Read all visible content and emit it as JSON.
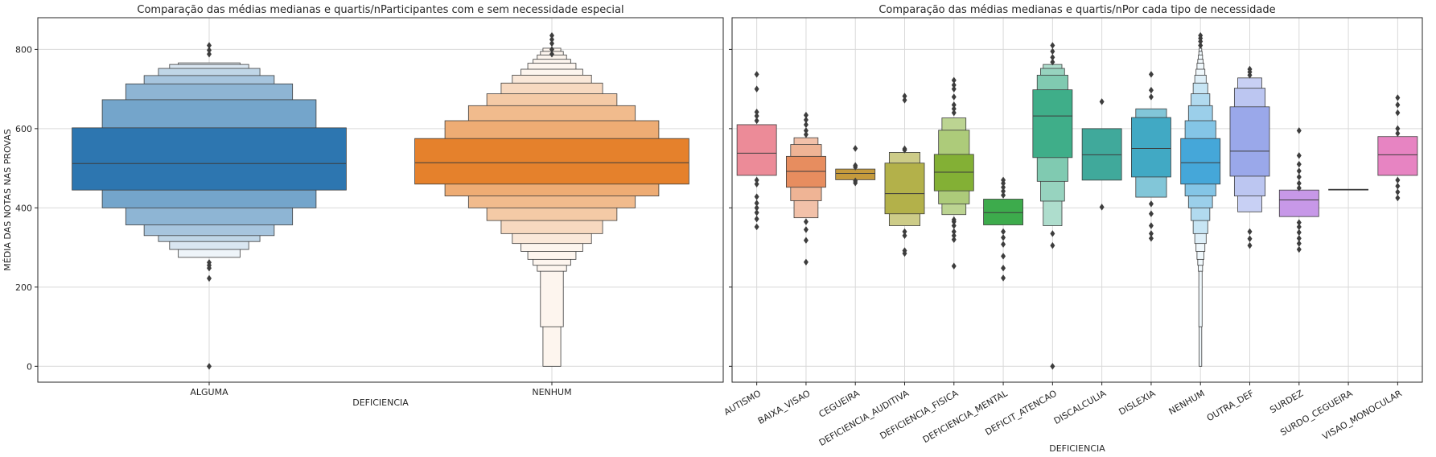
{
  "chart_data": [
    {
      "type": "boxen",
      "title": "Comparação das médias medianas e quartis/nParticipantes com e sem necessidade especial",
      "xlabel": "DEFICIENCIA",
      "ylabel": "MÉDIA DAS NOTAS NAS PROVAS",
      "ylim": [
        -40,
        880
      ],
      "yticks": [
        0,
        200,
        400,
        600,
        800
      ],
      "grid": true,
      "categories": [
        "ALGUMA",
        "NENHUM"
      ],
      "series": [
        {
          "category": "ALGUMA",
          "color": "#2d76b0",
          "median": 512,
          "levels": [
            [
              445,
              602
            ],
            [
              400,
              673
            ],
            [
              357,
              713
            ],
            [
              330,
              734
            ],
            [
              315,
              752
            ],
            [
              295,
              762
            ],
            [
              275,
              766
            ]
          ],
          "outliers": [
            0,
            222,
            248,
            255,
            262,
            788,
            798,
            810
          ]
        },
        {
          "category": "NENHUM",
          "color": "#e5812c",
          "median": 514,
          "levels": [
            [
              460,
              575
            ],
            [
              430,
              620
            ],
            [
              400,
              658
            ],
            [
              368,
              688
            ],
            [
              335,
              715
            ],
            [
              310,
              735
            ],
            [
              290,
              750
            ],
            [
              270,
              765
            ],
            [
              255,
              775
            ],
            [
              240,
              786
            ],
            [
              100,
              795
            ],
            [
              0,
              803
            ]
          ],
          "outliers": [
            788,
            800,
            815,
            825,
            835
          ]
        }
      ]
    },
    {
      "type": "boxen",
      "title": "Comparação  das médias medianas e quartis/nPor cada tipo de necessidade",
      "xlabel": "DEFICIENCIA",
      "ylabel": "",
      "ylim": [
        -40,
        880
      ],
      "yticks": [
        0,
        200,
        400,
        600,
        800
      ],
      "grid": true,
      "categories": [
        "AUTISMO",
        "BAIXA_VISAO",
        "CEGUEIRA",
        "DEFICIENCIA_AUDITIVA",
        "DEFICIENCIA_FISICA",
        "DEFICIENCIA_MENTAL",
        "DEFICIT_ATENCAO",
        "DISCALCULIA",
        "DISLEXIA",
        "NENHUM",
        "OUTRA_DEF",
        "SURDEZ",
        "SURDO_CEGUEIRA",
        "VISAO_MONOCULAR"
      ],
      "series": [
        {
          "category": "AUTISMO",
          "color": "#ec8b98",
          "median": 538,
          "levels": [
            [
              482,
              610
            ]
          ],
          "outliers": [
            352,
            372,
            388,
            400,
            412,
            428,
            460,
            470,
            620,
            632,
            642,
            700,
            737
          ]
        },
        {
          "category": "BAIXA_VISAO",
          "color": "#e78d5f",
          "median": 492,
          "levels": [
            [
              452,
              530
            ],
            [
              418,
              560
            ],
            [
              375,
              577
            ]
          ],
          "outliers": [
            263,
            318,
            345,
            365,
            585,
            595,
            610,
            622,
            634
          ]
        },
        {
          "category": "CEGUEIRA",
          "color": "#c59a3c",
          "median": 487,
          "levels": [
            [
              471,
              498
            ]
          ],
          "outliers": [
            463,
            468,
            503,
            507,
            550
          ]
        },
        {
          "category": "DEFICIENCIA_AUDITIVA",
          "color": "#b3b14a",
          "median": 436,
          "levels": [
            [
              385,
              513
            ],
            [
              355,
              540
            ]
          ],
          "outliers": [
            285,
            292,
            330,
            340,
            546,
            549,
            672,
            682
          ]
        },
        {
          "category": "DEFICIENCIA_FISICA",
          "color": "#83b035",
          "median": 490,
          "levels": [
            [
              443,
              535
            ],
            [
              410,
              596
            ],
            [
              383,
              627
            ]
          ],
          "outliers": [
            253,
            320,
            330,
            340,
            355,
            365,
            370,
            640,
            650,
            660,
            680,
            700,
            710,
            722
          ]
        },
        {
          "category": "DEFICIENCIA_MENTAL",
          "color": "#3dab4c",
          "median": 388,
          "levels": [
            [
              357,
              422
            ]
          ],
          "outliers": [
            223,
            248,
            278,
            308,
            325,
            340,
            432,
            442,
            452,
            462,
            470
          ]
        },
        {
          "category": "DEFICIT_ATENCAO",
          "color": "#3fae89",
          "median": 632,
          "levels": [
            [
              527,
              698
            ],
            [
              467,
              735
            ],
            [
              417,
              752
            ],
            [
              355,
              762
            ]
          ],
          "outliers": [
            0,
            305,
            335,
            768,
            780,
            795,
            810
          ]
        },
        {
          "category": "DISCALCULIA",
          "color": "#40a99b",
          "median": 534,
          "levels": [
            [
              470,
              600
            ]
          ],
          "outliers": [
            402,
            668
          ]
        },
        {
          "category": "DISLEXIA",
          "color": "#41a9c4",
          "median": 550,
          "levels": [
            [
              478,
              628
            ],
            [
              427,
              650
            ]
          ],
          "outliers": [
            323,
            335,
            355,
            385,
            410,
            680,
            697,
            737
          ]
        },
        {
          "category": "NENHUM",
          "color": "#45a7d9",
          "median": 514,
          "levels": [
            [
              460,
              575
            ],
            [
              430,
              620
            ],
            [
              400,
              658
            ],
            [
              368,
              688
            ],
            [
              335,
              715
            ],
            [
              310,
              735
            ],
            [
              290,
              750
            ],
            [
              270,
              765
            ],
            [
              255,
              775
            ],
            [
              240,
              786
            ],
            [
              100,
              795
            ],
            [
              0,
              803
            ]
          ],
          "outliers": [
            810,
            820,
            828,
            835
          ]
        },
        {
          "category": "OUTRA_DEF",
          "color": "#9aa8ea",
          "median": 543,
          "levels": [
            [
              480,
              655
            ],
            [
              430,
              702
            ],
            [
              390,
              728
            ]
          ],
          "outliers": [
            305,
            322,
            340,
            735,
            743,
            750
          ]
        },
        {
          "category": "SURDEZ",
          "color": "#c798e8",
          "median": 420,
          "levels": [
            [
              378,
              445
            ]
          ],
          "outliers": [
            295,
            310,
            323,
            338,
            352,
            363,
            450,
            462,
            478,
            493,
            510,
            532,
            595
          ]
        },
        {
          "category": "SURDO_CEGUEIRA",
          "color": "#c98fd8",
          "median": 446,
          "levels": [
            [
              445,
              447
            ]
          ],
          "outliers": []
        },
        {
          "category": "VISAO_MONOCULAR",
          "color": "#e784c2",
          "median": 534,
          "levels": [
            [
              482,
              580
            ]
          ],
          "outliers": [
            425,
            440,
            455,
            470,
            588,
            600,
            640,
            660,
            678
          ]
        }
      ]
    }
  ]
}
